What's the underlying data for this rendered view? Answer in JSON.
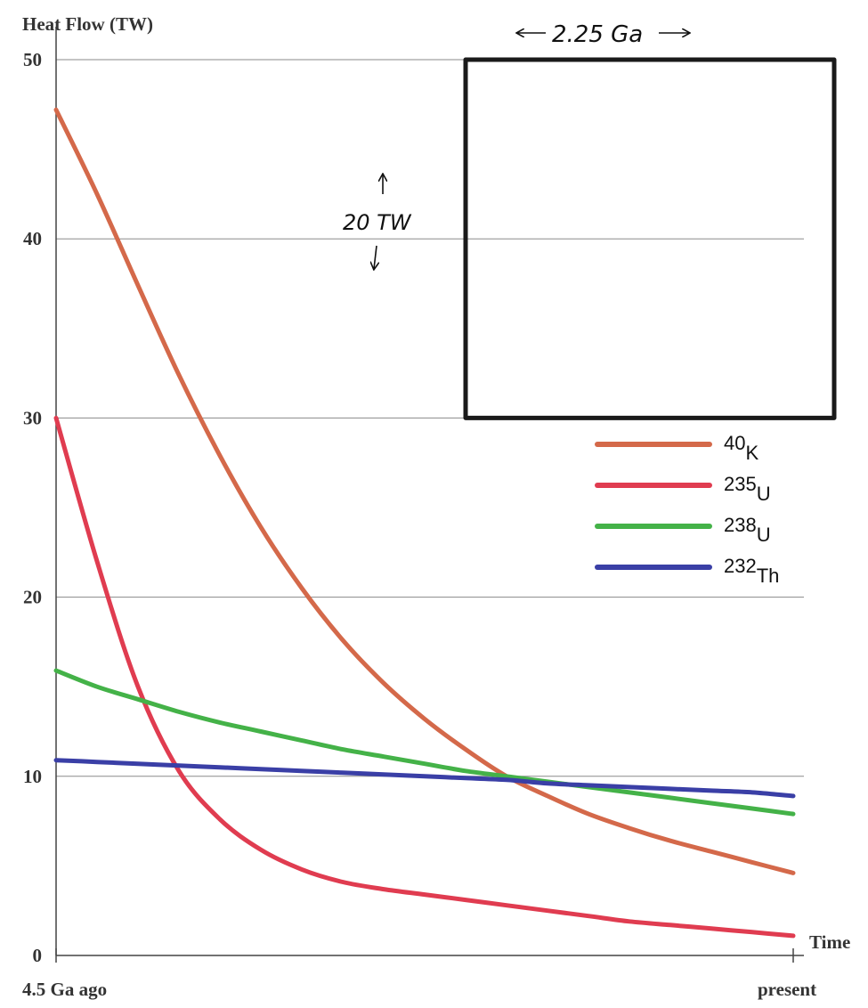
{
  "chart_data": {
    "type": "line",
    "title": "",
    "ylabel": "Heat Flow (TW)",
    "xlabel": "Time",
    "ylim": [
      0,
      50
    ],
    "yticks": [
      0,
      10,
      20,
      30,
      40,
      50
    ],
    "ytick_labels": [
      "0",
      "10",
      "20",
      "30",
      "40",
      "50"
    ],
    "x_tick_labels": [
      "4.5 Ga ago",
      "present"
    ],
    "xlim": [
      0,
      4.5
    ],
    "grid": true,
    "legend_placement": "right",
    "series": [
      {
        "name": "40K",
        "mass_number": "40",
        "symbol": "K",
        "color": "#d4694a",
        "x": [
          0,
          0.25,
          0.5,
          0.75,
          1.0,
          1.25,
          1.5,
          1.75,
          2.0,
          2.25,
          2.5,
          2.75,
          3.0,
          3.25,
          3.5,
          3.75,
          4.0,
          4.25,
          4.5
        ],
        "values": [
          47.2,
          42.5,
          37.4,
          32.4,
          27.9,
          23.9,
          20.5,
          17.6,
          15.2,
          13.2,
          11.5,
          10.0,
          8.9,
          7.9,
          7.1,
          6.4,
          5.8,
          5.2,
          4.6
        ]
      },
      {
        "name": "235U",
        "mass_number": "235",
        "symbol": "U",
        "color": "#e03c50",
        "x": [
          0,
          0.25,
          0.5,
          0.75,
          1.0,
          1.25,
          1.5,
          1.75,
          2.0,
          2.25,
          2.5,
          2.75,
          3.0,
          3.25,
          3.5,
          3.75,
          4.0,
          4.25,
          4.5
        ],
        "values": [
          30.0,
          22.0,
          15.0,
          10.3,
          7.6,
          5.9,
          4.8,
          4.1,
          3.7,
          3.4,
          3.1,
          2.8,
          2.5,
          2.2,
          1.9,
          1.7,
          1.5,
          1.3,
          1.1
        ]
      },
      {
        "name": "238U",
        "mass_number": "238",
        "symbol": "U",
        "color": "#44b248",
        "x": [
          0,
          0.25,
          0.5,
          0.75,
          1.0,
          1.25,
          1.5,
          1.75,
          2.0,
          2.25,
          2.5,
          2.75,
          3.0,
          3.25,
          3.5,
          3.75,
          4.0,
          4.25,
          4.5
        ],
        "values": [
          15.9,
          15.0,
          14.3,
          13.6,
          13.0,
          12.5,
          12.0,
          11.5,
          11.1,
          10.7,
          10.3,
          10.0,
          9.7,
          9.4,
          9.1,
          8.8,
          8.5,
          8.2,
          7.9
        ]
      },
      {
        "name": "232Th",
        "mass_number": "232",
        "symbol": "Th",
        "color": "#3a3fa6",
        "x": [
          0,
          0.25,
          0.5,
          0.75,
          1.0,
          1.25,
          1.5,
          1.75,
          2.0,
          2.25,
          2.5,
          2.75,
          3.0,
          3.25,
          3.5,
          3.75,
          4.0,
          4.25,
          4.5
        ],
        "values": [
          10.9,
          10.8,
          10.7,
          10.6,
          10.5,
          10.4,
          10.3,
          10.2,
          10.1,
          10.0,
          9.9,
          9.8,
          9.6,
          9.5,
          9.4,
          9.3,
          9.2,
          9.1,
          8.9
        ]
      }
    ],
    "annotations": {
      "box_width_label": "2.25 Ga",
      "box_height_label": "20 TW",
      "box_x_range": [
        2.5,
        4.75
      ],
      "box_y_range": [
        30,
        50
      ]
    }
  }
}
